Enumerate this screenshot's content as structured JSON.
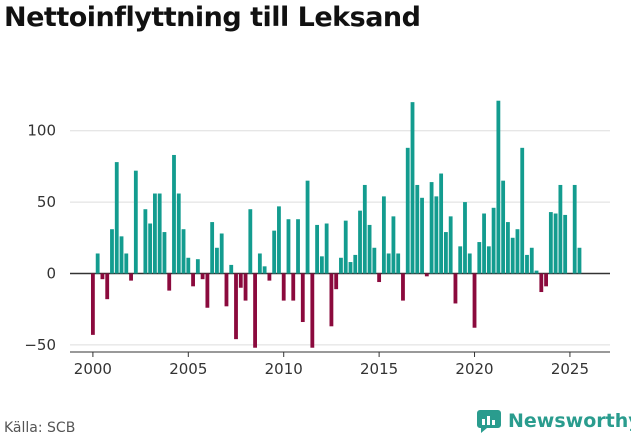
{
  "title": "Nettoinflyttning till Leksand",
  "source": "Källa: SCB",
  "brand": "Newsworthy",
  "colors": {
    "positive": "#139c8f",
    "negative": "#8b0a3d",
    "grid": "#dddddd",
    "axis": "#333333",
    "brand": "#2a9c8e"
  },
  "chart_data": {
    "type": "bar",
    "title": "Nettoinflyttning till Leksand",
    "xlabel": "",
    "ylabel": "",
    "ylim": [
      -55,
      125
    ],
    "xlim": [
      1998.8,
      2027.1
    ],
    "yticks": [
      -50,
      0,
      50,
      100
    ],
    "xticks": [
      2000,
      2005,
      2010,
      2015,
      2020,
      2025
    ],
    "grid": true,
    "bar_width": 0.2,
    "x": [
      2000.0,
      2000.25,
      2000.5,
      2000.75,
      2001.0,
      2001.25,
      2001.5,
      2001.75,
      2002.0,
      2002.25,
      2002.5,
      2002.75,
      2003.0,
      2003.25,
      2003.5,
      2003.75,
      2004.0,
      2004.25,
      2004.5,
      2004.75,
      2005.0,
      2005.25,
      2005.5,
      2005.75,
      2006.0,
      2006.25,
      2006.5,
      2006.75,
      2007.0,
      2007.25,
      2007.5,
      2007.75,
      2008.0,
      2008.25,
      2008.5,
      2008.75,
      2009.0,
      2009.25,
      2009.5,
      2009.75,
      2010.0,
      2010.25,
      2010.5,
      2010.75,
      2011.0,
      2011.25,
      2011.5,
      2011.75,
      2012.0,
      2012.25,
      2012.5,
      2012.75,
      2013.0,
      2013.25,
      2013.5,
      2013.75,
      2014.0,
      2014.25,
      2014.5,
      2014.75,
      2015.0,
      2015.25,
      2015.5,
      2015.75,
      2016.0,
      2016.25,
      2016.5,
      2016.75,
      2017.0,
      2017.25,
      2017.5,
      2017.75,
      2018.0,
      2018.25,
      2018.5,
      2018.75,
      2019.0,
      2019.25,
      2019.5,
      2019.75,
      2020.0,
      2020.25,
      2020.5,
      2020.75,
      2021.0,
      2021.25,
      2021.5,
      2021.75,
      2022.0,
      2022.25,
      2022.5,
      2022.75,
      2023.0,
      2023.25,
      2023.5,
      2023.75,
      2024.0,
      2024.25,
      2024.5,
      2024.75,
      2025.0,
      2025.25,
      2025.5,
      2025.75
    ],
    "values": [
      -43,
      14,
      -4,
      -18,
      31,
      78,
      26,
      14,
      -5,
      72,
      0,
      45,
      35,
      56,
      56,
      29,
      -12,
      83,
      56,
      31,
      11,
      -9,
      10,
      -4,
      -24,
      36,
      18,
      28,
      -23,
      6,
      -46,
      -10,
      -19,
      45,
      -52,
      14,
      5,
      -5,
      30,
      47,
      -19,
      38,
      -19,
      38,
      -34,
      65,
      -52,
      34,
      12,
      35,
      -37,
      -11,
      11,
      37,
      8,
      13,
      44,
      62,
      34,
      18,
      -6,
      54,
      14,
      40,
      14,
      -19,
      88,
      120,
      62,
      53,
      -2,
      64,
      54,
      70,
      29,
      40,
      -21,
      19,
      50,
      14,
      -38,
      22,
      42,
      19,
      46,
      121,
      65,
      36,
      25,
      31,
      88,
      13,
      18,
      2,
      -13,
      -9,
      43,
      42,
      62,
      41,
      0,
      62,
      18,
      0
    ]
  }
}
